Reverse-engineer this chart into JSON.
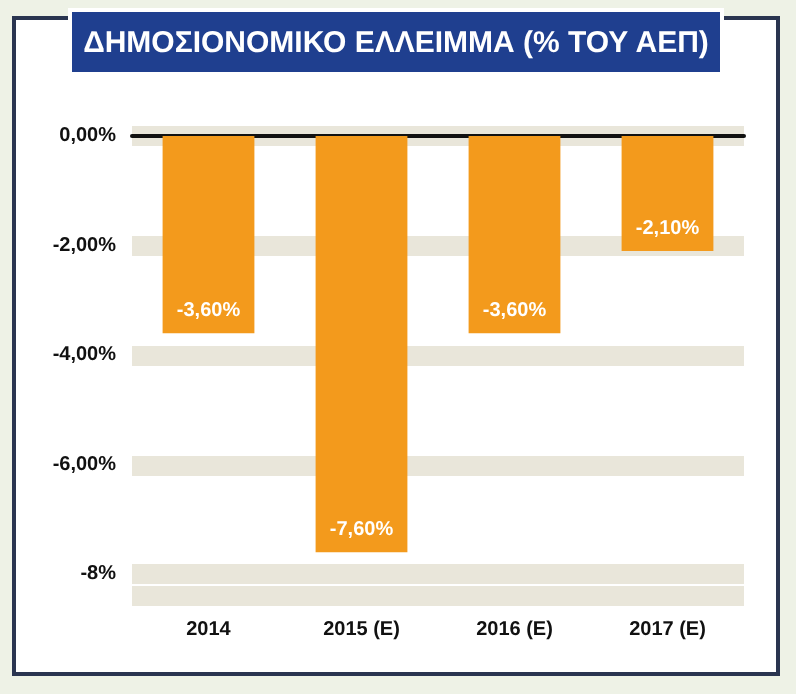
{
  "chart_data": {
    "type": "bar",
    "title": "ΔΗΜΟΣΙΟΝΟΜΙΚΟ ΕΛΛΕΙΜΜΑ (% ΤΟΥ ΑΕΠ)",
    "categories": [
      "2014",
      "2015 (Ε)",
      "2016 (Ε)",
      "2017 (Ε)"
    ],
    "values": [
      -3.6,
      -7.6,
      -3.6,
      -2.1
    ],
    "value_labels": [
      "-3,60%",
      "-7,60%",
      "-3,60%",
      "-2,10%"
    ],
    "color": "#f39a1c",
    "ylim": [
      -8.4,
      0
    ],
    "yticks": [
      {
        "value": 0,
        "label": "0,00%"
      },
      {
        "value": -2,
        "label": "-2,00%"
      },
      {
        "value": -4,
        "label": "-4,00%"
      },
      {
        "value": -6,
        "label": "-6,00%"
      },
      {
        "value": -8,
        "label": "-8%"
      }
    ],
    "grid": "y"
  }
}
